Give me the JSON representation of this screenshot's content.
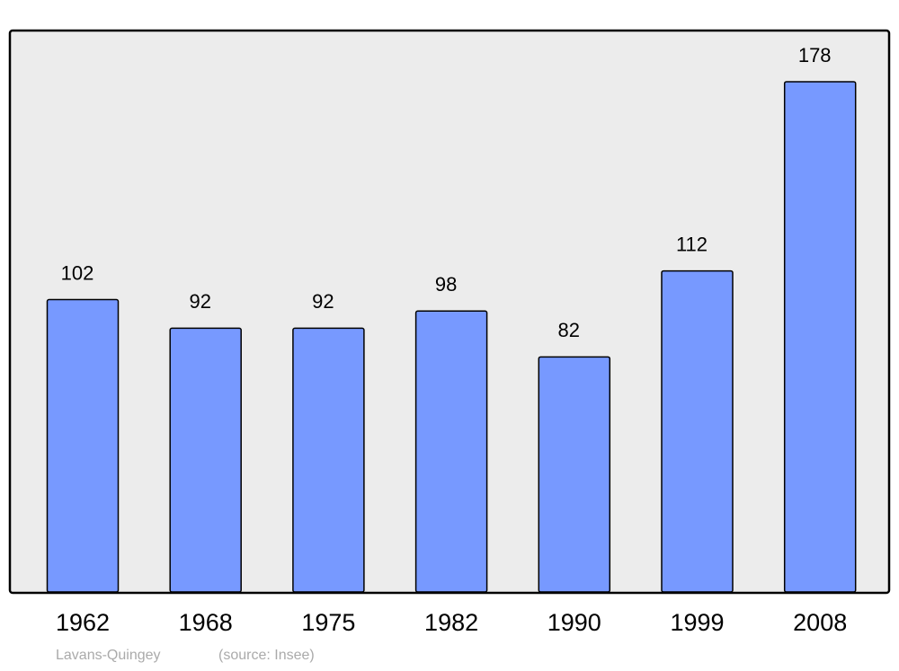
{
  "chart_data": {
    "type": "bar",
    "title": "Lavans-Quingey",
    "source": "(source: Insee)",
    "categories": [
      "1962",
      "1968",
      "1975",
      "1982",
      "1990",
      "1999",
      "2008"
    ],
    "values": [
      102,
      92,
      92,
      98,
      82,
      112,
      178
    ],
    "color": "#7799ff"
  }
}
